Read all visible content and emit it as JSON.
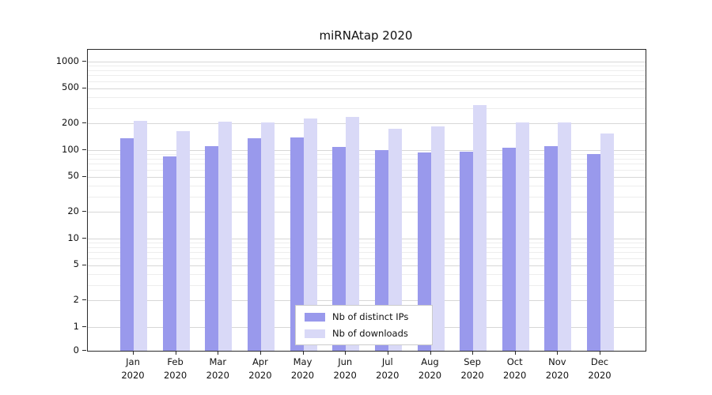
{
  "chart_data": {
    "type": "bar",
    "title": "miRNAtap 2020",
    "categories": [
      "Jan",
      "Feb",
      "Mar",
      "Apr",
      "May",
      "Jun",
      "Jul",
      "Aug",
      "Sep",
      "Oct",
      "Nov",
      "Dec"
    ],
    "x_label_year": "2020",
    "series": [
      {
        "name": "Nb of distinct IPs",
        "color": "#9999ec",
        "values": [
          135,
          85,
          110,
          135,
          140,
          108,
          100,
          95,
          96,
          107,
          110,
          90
        ]
      },
      {
        "name": "Nb of downloads",
        "color": "#d9d9f7",
        "values": [
          215,
          165,
          210,
          205,
          230,
          235,
          175,
          185,
          320,
          205,
          205,
          155
        ]
      }
    ],
    "y_scale": "log",
    "y_ticks": [
      0,
      1,
      2,
      5,
      10,
      20,
      50,
      100,
      200,
      500,
      1000
    ],
    "ylim": [
      0,
      1100
    ],
    "xlabel": "",
    "ylabel": "",
    "grid": true,
    "legend_position": "bottom-center",
    "colors": {
      "grid_major": "#d7d7d7",
      "grid_minor": "#ededed",
      "spine": "#2a2a2a",
      "background": "#ffffff"
    }
  }
}
